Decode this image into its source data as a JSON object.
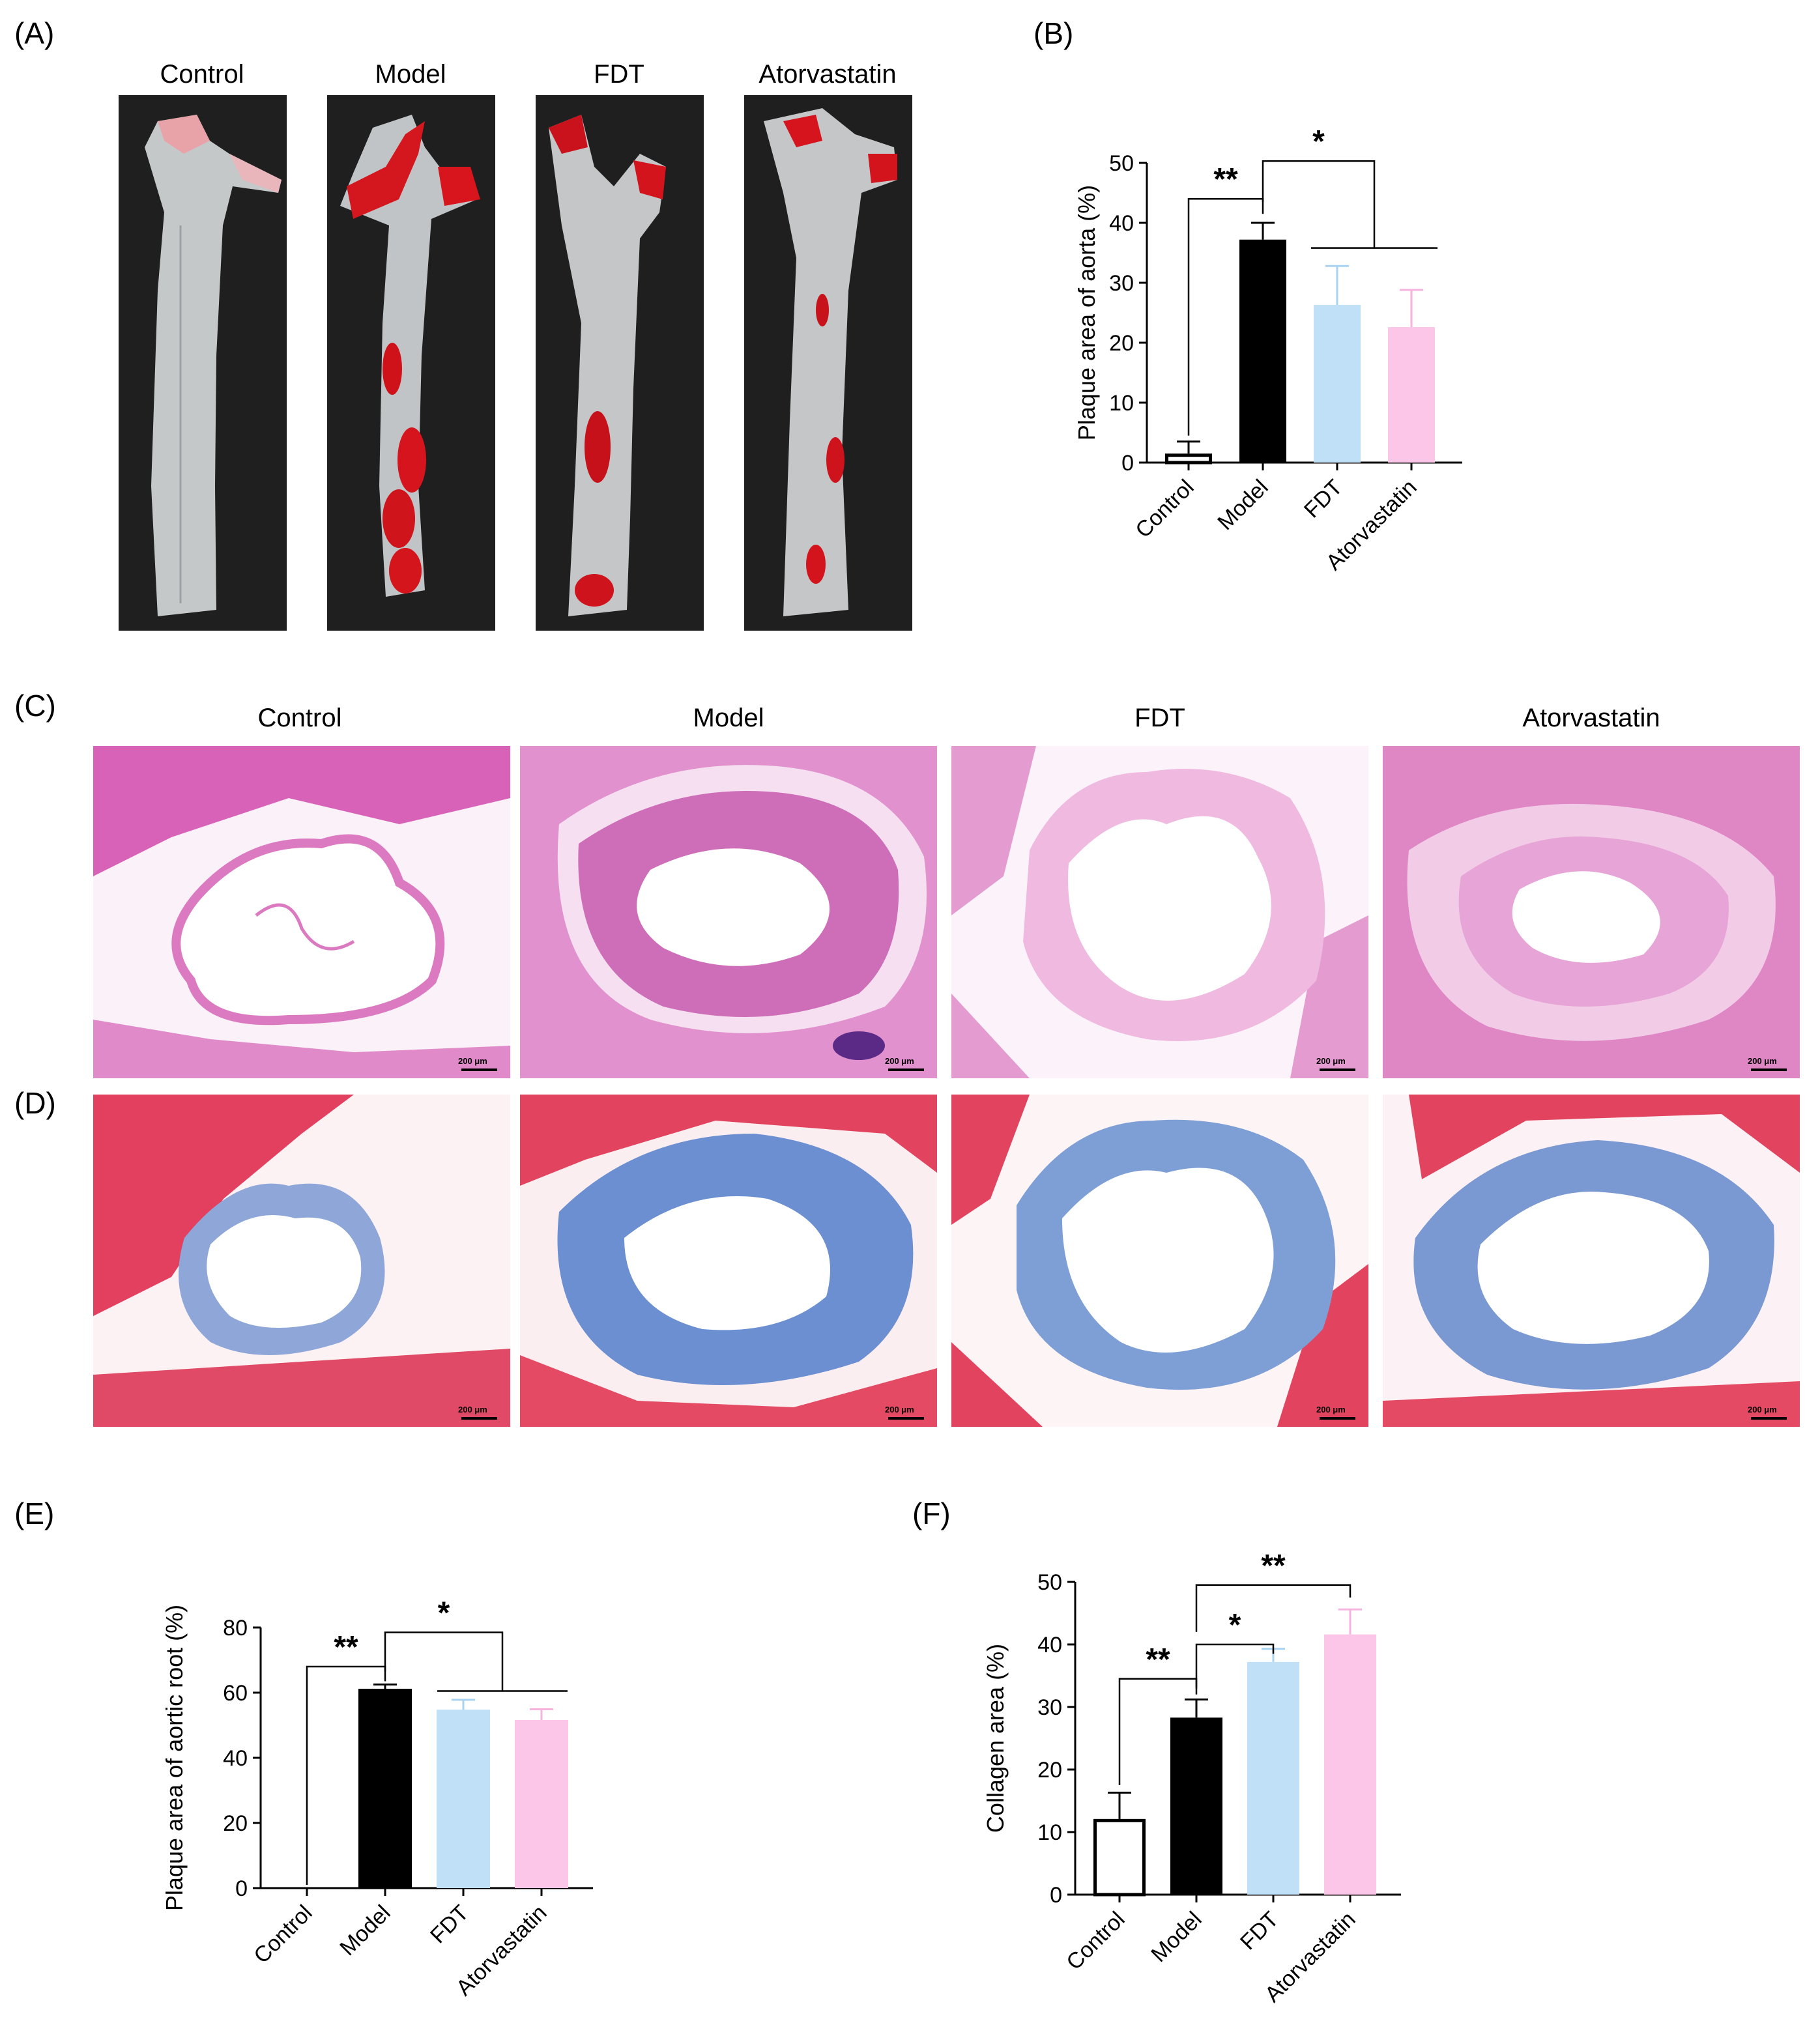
{
  "panels": {
    "A": {
      "letter": "(A)",
      "groups": [
        "Control",
        "Model",
        "FDT",
        "Atorvastatin"
      ]
    },
    "B": {
      "letter": "(B)"
    },
    "C": {
      "letter": "(C)",
      "groups": [
        "Control",
        "Model",
        "FDT",
        "Atorvastatin"
      ]
    },
    "D": {
      "letter": "(D)"
    },
    "E": {
      "letter": "(E)"
    },
    "F": {
      "letter": "(F)"
    }
  },
  "scale_bar_label": "200 μm",
  "colors": {
    "control": "#ffffff",
    "model": "#000000",
    "fdt": "#bfe0f7",
    "atorvastatin": "#fbc6e8",
    "he_stain": "#e07fc6",
    "masson_muscle": "#e2405f",
    "masson_collagen": "#6b8fd0"
  },
  "chart_data": [
    {
      "id": "B",
      "type": "bar",
      "categories": [
        "Control",
        "Model",
        "FDT",
        "Atorvastatin"
      ],
      "values": [
        1.5,
        37.2,
        26.3,
        22.6
      ],
      "errors": [
        2.0,
        2.8,
        6.5,
        6.2
      ],
      "ylabel": "Plaque area of aorta (%)",
      "ylim": [
        0,
        50
      ],
      "yticks": [
        0,
        10,
        20,
        30,
        40,
        50
      ],
      "significance": [
        {
          "from": 0,
          "to": [
            1
          ],
          "label": "**"
        },
        {
          "from": 1,
          "to": [
            2,
            3
          ],
          "label": "*"
        }
      ]
    },
    {
      "id": "E",
      "type": "bar",
      "categories": [
        "Control",
        "Model",
        "FDT",
        "Atorvastatin"
      ],
      "values": [
        0,
        61.2,
        54.8,
        51.6
      ],
      "errors": [
        0,
        1.3,
        3.0,
        3.3
      ],
      "ylabel": "Plaque area of aortic root (%)",
      "ylim": [
        0,
        80
      ],
      "yticks": [
        0,
        20,
        40,
        60,
        80
      ],
      "significance": [
        {
          "from": 0,
          "to": [
            1
          ],
          "label": "**"
        },
        {
          "from": 1,
          "to": [
            2,
            3
          ],
          "label": "*"
        }
      ]
    },
    {
      "id": "F",
      "type": "bar",
      "categories": [
        "Control",
        "Model",
        "FDT",
        "Atorvastatin"
      ],
      "values": [
        12.1,
        28.3,
        37.2,
        41.6
      ],
      "errors": [
        4.2,
        2.9,
        2.1,
        4.0
      ],
      "ylabel": "Collagen area (%)",
      "ylim": [
        0,
        50
      ],
      "yticks": [
        0,
        10,
        20,
        30,
        40,
        50
      ],
      "significance": [
        {
          "from": 0,
          "to": [
            1
          ],
          "label": "**"
        },
        {
          "from": 1,
          "to": [
            2
          ],
          "label": "*"
        },
        {
          "from": 1,
          "to": [
            3
          ],
          "label": "**"
        }
      ]
    }
  ]
}
